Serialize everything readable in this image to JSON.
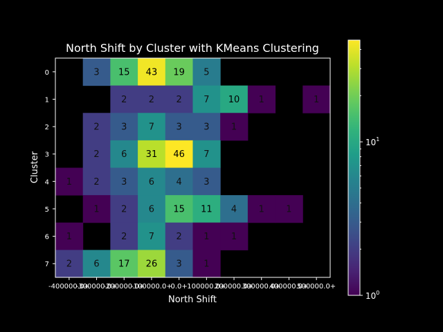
{
  "chart_data": {
    "type": "heatmap",
    "title": "North Shift by Cluster with KMeans Clustering",
    "xlabel": "North Shift",
    "ylabel": "Cluster",
    "x_tick_labels": [
      "-400000.0+",
      "-300000.0+",
      "-200000.0+",
      "-100000.0+",
      "0.0+",
      "100000.0+",
      "200000.0+",
      "300000.0+",
      "400000.0+",
      "500000.0+"
    ],
    "y_tick_labels": [
      "0",
      "1",
      "2",
      "3",
      "4",
      "5",
      "6",
      "7"
    ],
    "values": [
      [
        null,
        3,
        15,
        43,
        19,
        5,
        null,
        null,
        null,
        null
      ],
      [
        null,
        null,
        2,
        2,
        2,
        7,
        10,
        1,
        null,
        1
      ],
      [
        null,
        2,
        3,
        7,
        3,
        3,
        1,
        null,
        null,
        null
      ],
      [
        null,
        2,
        6,
        31,
        46,
        7,
        null,
        null,
        null,
        null
      ],
      [
        1,
        2,
        3,
        6,
        4,
        3,
        null,
        null,
        null,
        null
      ],
      [
        null,
        1,
        2,
        6,
        15,
        11,
        4,
        1,
        1,
        null
      ],
      [
        1,
        null,
        2,
        7,
        2,
        1,
        1,
        null,
        null,
        null
      ],
      [
        2,
        6,
        17,
        26,
        3,
        1,
        null,
        null,
        null,
        null
      ]
    ],
    "colorscale": "viridis",
    "color_scale_type": "log",
    "color_range": [
      1,
      46
    ],
    "colorbar_ticks": [
      {
        "base": "10",
        "exp": "0",
        "value": 1
      },
      {
        "base": "10",
        "exp": "1",
        "value": 10
      }
    ],
    "grid": false
  }
}
